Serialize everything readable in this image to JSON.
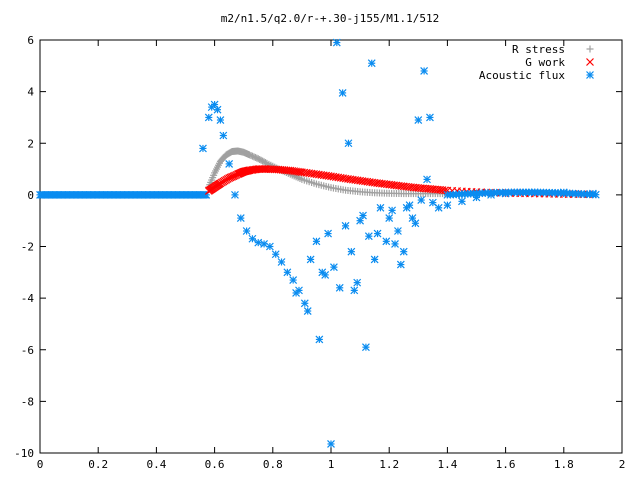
{
  "chart_data": {
    "type": "scatter",
    "title": "m2/n1.5/q2.0/r-+.30-j155/M1.1/512",
    "xlabel": "",
    "ylabel": "",
    "xlim": [
      0,
      2
    ],
    "ylim": [
      -10,
      6
    ],
    "x_ticks": [
      "0",
      "0.2",
      "0.4",
      "0.6",
      "0.8",
      "1",
      "1.2",
      "1.4",
      "1.6",
      "1.8",
      "2"
    ],
    "y_ticks": [
      "6",
      "4",
      "2",
      "0",
      "-2",
      "-4",
      "-6",
      "-8",
      "-10"
    ],
    "grid": false,
    "legend_position": "top-right",
    "series": [
      {
        "name": "R stress",
        "marker": "plus",
        "color": "#a0a0a0",
        "x": [
          0.58,
          0.6,
          0.62,
          0.64,
          0.66,
          0.68,
          0.7,
          0.72,
          0.75,
          0.78,
          0.82,
          0.86,
          0.9,
          0.95,
          1.0,
          1.05,
          1.1,
          1.15,
          1.2,
          1.25,
          1.3,
          1.35,
          1.4
        ],
        "y": [
          0.3,
          0.85,
          1.3,
          1.55,
          1.68,
          1.7,
          1.65,
          1.55,
          1.4,
          1.22,
          1.0,
          0.8,
          0.6,
          0.42,
          0.28,
          0.18,
          0.12,
          0.08,
          0.06,
          0.05,
          0.05,
          0.05,
          0.05
        ]
      },
      {
        "name": "G work",
        "marker": "cross",
        "color": "#ff0000",
        "x": [
          0.58,
          0.6,
          0.62,
          0.65,
          0.68,
          0.7,
          0.72,
          0.75,
          0.78,
          0.82,
          0.86,
          0.9,
          0.95,
          1.0,
          1.05,
          1.1,
          1.15,
          1.2,
          1.25,
          1.3,
          1.35,
          1.4,
          1.5,
          1.6,
          1.7,
          1.8,
          1.9
        ],
        "y": [
          0.15,
          0.3,
          0.45,
          0.65,
          0.8,
          0.9,
          0.95,
          1.0,
          1.0,
          0.98,
          0.94,
          0.88,
          0.8,
          0.72,
          0.63,
          0.55,
          0.47,
          0.4,
          0.33,
          0.27,
          0.22,
          0.17,
          0.11,
          0.07,
          0.05,
          0.03,
          0.02
        ]
      },
      {
        "name": "Acoustic flux",
        "marker": "star",
        "color": "#0a8cf0",
        "x": [
          0.56,
          0.58,
          0.59,
          0.6,
          0.61,
          0.62,
          0.63,
          0.65,
          0.67,
          0.69,
          0.71,
          0.73,
          0.75,
          0.77,
          0.79,
          0.81,
          0.83,
          0.85,
          0.87,
          0.89,
          0.91,
          0.93,
          0.95,
          0.97,
          0.99,
          1.01,
          1.03,
          1.05,
          1.07,
          1.09,
          1.11,
          1.13,
          1.15,
          1.17,
          1.19,
          1.21,
          1.23,
          1.25,
          1.27,
          1.29,
          1.31,
          1.33,
          0.96,
          1.02,
          1.04,
          1.14,
          1.32,
          1.0,
          1.06,
          1.1,
          1.2,
          1.26,
          1.3,
          1.35,
          1.37,
          1.4,
          1.45,
          1.5,
          1.55,
          1.6,
          1.7,
          1.8,
          1.9,
          0.88,
          0.92,
          0.98,
          1.08,
          1.12,
          1.16,
          1.22,
          1.24,
          1.28,
          1.34
        ],
        "y": [
          1.8,
          3.0,
          3.4,
          3.5,
          3.3,
          2.9,
          2.3,
          1.2,
          0.0,
          -0.9,
          -1.4,
          -1.7,
          -1.85,
          -1.9,
          -2.0,
          -2.3,
          -2.6,
          -3.0,
          -3.3,
          -3.7,
          -4.2,
          -2.5,
          -1.8,
          -3.0,
          -1.5,
          -2.8,
          -3.6,
          -1.2,
          -2.2,
          -3.4,
          -0.8,
          -1.6,
          -2.5,
          -0.5,
          -1.8,
          -0.6,
          -1.4,
          -2.2,
          -0.4,
          -1.1,
          -0.2,
          0.6,
          -5.6,
          5.9,
          3.95,
          5.1,
          4.8,
          -9.65,
          2.0,
          -1.0,
          -0.9,
          -0.5,
          2.9,
          -0.3,
          -0.5,
          -0.4,
          -0.25,
          -0.1,
          0.0,
          0.05,
          0.1,
          0.1,
          0.05,
          -3.8,
          -4.5,
          -3.1,
          -3.7,
          -5.9,
          -1.5,
          -1.9,
          -2.7,
          -0.9,
          3.0
        ]
      }
    ]
  }
}
